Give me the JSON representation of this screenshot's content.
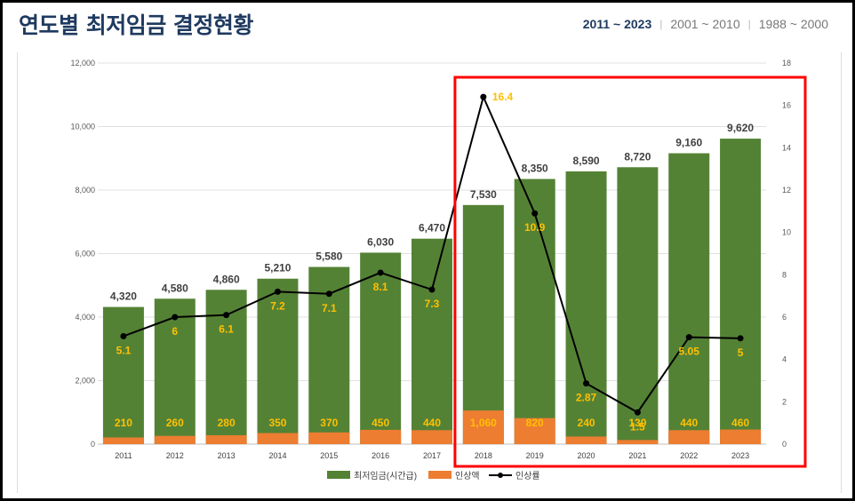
{
  "header": {
    "title": "연도별 최저임금 결정현황",
    "tabs": [
      {
        "label": "2011 ~ 2023",
        "active": true
      },
      {
        "label": "2001 ~ 2010",
        "active": false
      },
      {
        "label": "1988 ~ 2000",
        "active": false
      }
    ]
  },
  "colors": {
    "wage_bar": "#548235",
    "increase_bar": "#ed7d31",
    "rate_line": "#000000",
    "rate_label": "#ffc000",
    "highlight_box": "#ff0000"
  },
  "chart_data": {
    "type": "bar",
    "categories": [
      "2011",
      "2012",
      "2013",
      "2014",
      "2015",
      "2016",
      "2017",
      "2018",
      "2019",
      "2020",
      "2021",
      "2022",
      "2023"
    ],
    "series": [
      {
        "name": "최저임금(시간급)",
        "type": "bar",
        "axis": "left",
        "values": [
          4320,
          4580,
          4860,
          5210,
          5580,
          6030,
          6470,
          7530,
          8350,
          8590,
          8720,
          9160,
          9620
        ],
        "labels": [
          "4,320",
          "4,580",
          "4,860",
          "5,210",
          "5,580",
          "6,030",
          "6,470",
          "7,530",
          "8,350",
          "8,590",
          "8,720",
          "9,160",
          "9,620"
        ]
      },
      {
        "name": "인상액",
        "type": "bar",
        "axis": "left",
        "values": [
          210,
          260,
          280,
          350,
          370,
          450,
          440,
          1060,
          820,
          240,
          130,
          440,
          460
        ],
        "labels": [
          "210",
          "260",
          "280",
          "350",
          "370",
          "450",
          "440",
          "1,060",
          "820",
          "240",
          "130",
          "440",
          "460"
        ]
      },
      {
        "name": "인상률",
        "type": "line",
        "axis": "right",
        "values": [
          5.1,
          6,
          6.1,
          7.2,
          7.1,
          8.1,
          7.3,
          16.4,
          10.9,
          2.87,
          1.5,
          5.05,
          5
        ],
        "labels": [
          "5.1",
          "6",
          "6.1",
          "7.2",
          "7.1",
          "8.1",
          "7.3",
          "16.4",
          "10.9",
          "2.87",
          "1.5",
          "5.05",
          "5"
        ]
      }
    ],
    "y_left": {
      "min": 0,
      "max": 12000,
      "ticks": [
        "0",
        "2,000",
        "4,000",
        "6,000",
        "8,000",
        "10,000",
        "12,000"
      ]
    },
    "y_right": {
      "min": 0,
      "max": 18,
      "ticks": [
        "0",
        "2",
        "4",
        "6",
        "8",
        "10",
        "12",
        "14",
        "16",
        "18"
      ]
    },
    "grid": true,
    "legend_position": "bottom",
    "highlight_range": [
      "2018",
      "2023"
    ]
  }
}
